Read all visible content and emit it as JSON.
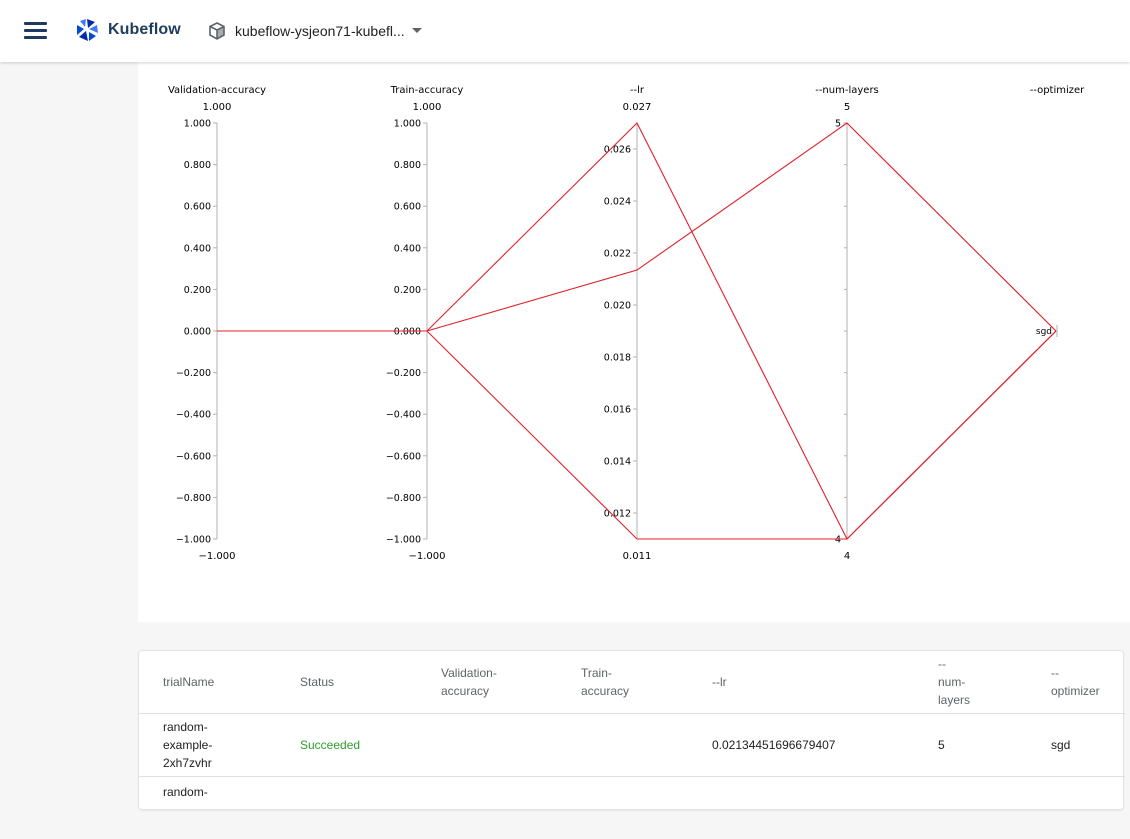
{
  "app": {
    "brand": "Kubeflow",
    "namespace": "kubeflow-ysjeon71-kubefl..."
  },
  "icons": {
    "menu": "hamburger-menu-icon",
    "logo": "kubeflow-logo-icon",
    "namespace": "cube-icon",
    "dropdown": "caret-down-icon"
  },
  "colors": {
    "line": "#e0202a",
    "success": "#2e9f2e",
    "brand": "#1e3c5c"
  },
  "chart_data": {
    "type": "parallel-coordinates",
    "axes": [
      {
        "name": "Validation-accuracy",
        "top_label": "1.000",
        "bottom_label": "−1.000",
        "range": [
          -1,
          1
        ],
        "ticks": [
          "1.000",
          "0.800",
          "0.600",
          "0.400",
          "0.200",
          "0.000",
          "−0.200",
          "−0.400",
          "−0.600",
          "−0.800",
          "−1.000"
        ]
      },
      {
        "name": "Train-accuracy",
        "top_label": "1.000",
        "bottom_label": "−1.000",
        "range": [
          -1,
          1
        ],
        "ticks": [
          "1.000",
          "0.800",
          "0.600",
          "0.400",
          "0.200",
          "0.000",
          "−0.200",
          "−0.400",
          "−0.600",
          "−0.800",
          "−1.000"
        ]
      },
      {
        "name": "--lr",
        "top_label": "0.027",
        "bottom_label": "0.011",
        "range": [
          0.011,
          0.027
        ],
        "ticks": [
          "0.026",
          "0.024",
          "0.022",
          "0.020",
          "0.018",
          "0.016",
          "0.014",
          "0.012"
        ],
        "tick_values": [
          0.026,
          0.024,
          0.022,
          0.02,
          0.018,
          0.016,
          0.014,
          0.012
        ]
      },
      {
        "name": "--num-layers",
        "top_label": "5",
        "bottom_label": "4",
        "range": [
          4,
          5
        ],
        "ticks": [
          "5",
          "4"
        ],
        "tick_values": [
          5,
          4
        ]
      },
      {
        "name": "--optimizer",
        "categories": [
          "sgd"
        ]
      }
    ],
    "trials": [
      {
        "validation_accuracy": 0,
        "train_accuracy": 0,
        "lr": 0.027,
        "num_layers": 4,
        "optimizer": "sgd"
      },
      {
        "validation_accuracy": 0,
        "train_accuracy": 0,
        "lr": 0.02134451696679407,
        "num_layers": 5,
        "optimizer": "sgd"
      },
      {
        "validation_accuracy": 0,
        "train_accuracy": 0,
        "lr": 0.011,
        "num_layers": 4,
        "optimizer": "sgd"
      }
    ]
  },
  "table": {
    "headers": [
      [
        "trialName"
      ],
      [
        "Status"
      ],
      [
        "Validation-",
        "accuracy"
      ],
      [
        "Train-",
        "accuracy"
      ],
      [
        "--lr"
      ],
      [
        "--",
        "num-",
        "layers"
      ],
      [
        "--",
        "optimizer"
      ]
    ],
    "rows": [
      {
        "trialName": [
          "random-",
          "example-",
          "2xh7zvhr"
        ],
        "status": "Succeeded",
        "validation_accuracy": "",
        "train_accuracy": "",
        "lr": "0.02134451696679407",
        "num_layers": "5",
        "optimizer": "sgd"
      },
      {
        "trialName": [
          "random-"
        ],
        "status": "",
        "validation_accuracy": "",
        "train_accuracy": "",
        "lr": "",
        "num_layers": "",
        "optimizer": ""
      }
    ]
  }
}
